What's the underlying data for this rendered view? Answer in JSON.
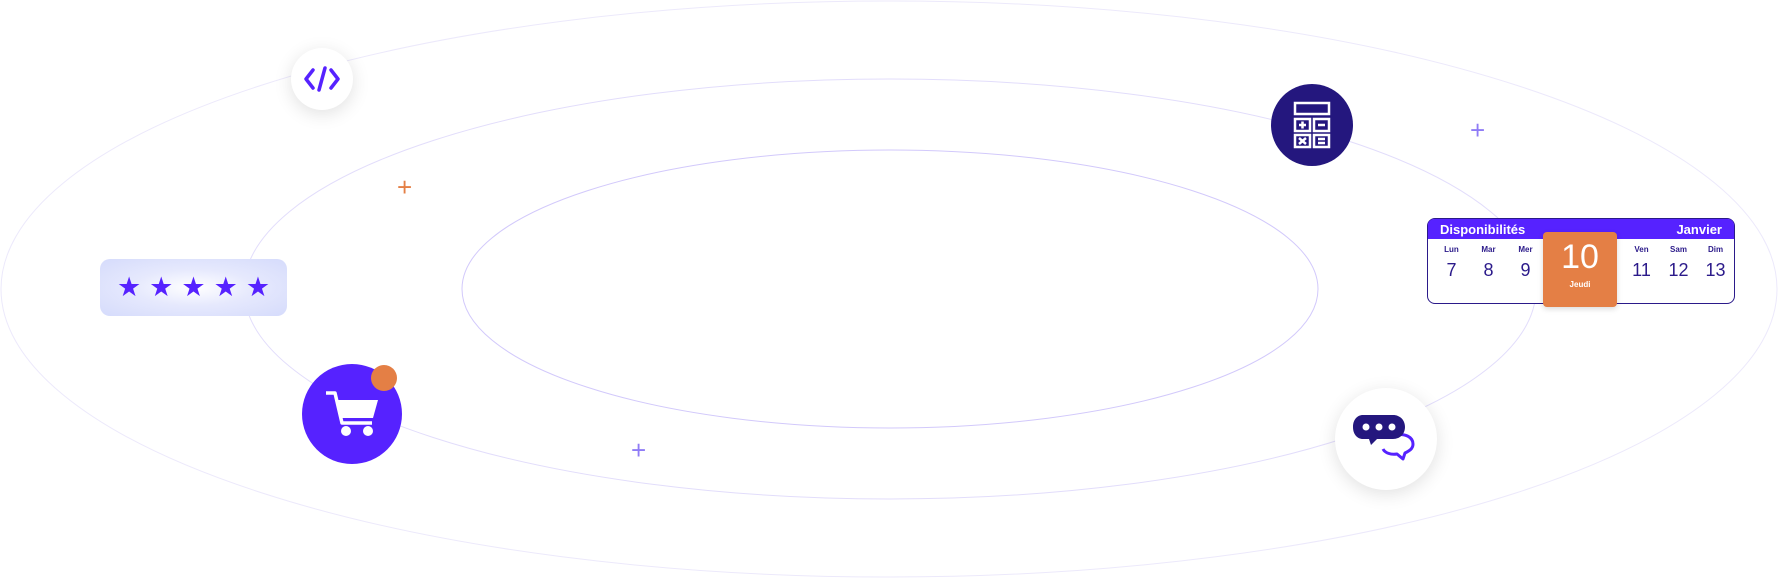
{
  "colors": {
    "primary": "#5622ff",
    "dark": "#24177e",
    "accent": "#e47f45",
    "orbit": "#d9d3fb"
  },
  "rating": {
    "stars": 5,
    "max": 5
  },
  "calendar": {
    "title": "Disponibilités",
    "month": "Janvier",
    "days_before": [
      {
        "name": "Lun",
        "num": "7"
      },
      {
        "name": "Mar",
        "num": "8"
      },
      {
        "name": "Mer",
        "num": "9"
      }
    ],
    "selected": {
      "name": "Jeudi",
      "num": "10"
    },
    "days_after": [
      {
        "name": "Ven",
        "num": "11"
      },
      {
        "name": "Sam",
        "num": "12"
      },
      {
        "name": "Dim",
        "num": "13"
      }
    ]
  },
  "icons": {
    "code": "code-icon",
    "calculator": "calculator-icon",
    "cart": "shopping-cart-icon",
    "chat": "chat-bubbles-icon",
    "star": "star-icon",
    "plus": "plus-icon"
  }
}
